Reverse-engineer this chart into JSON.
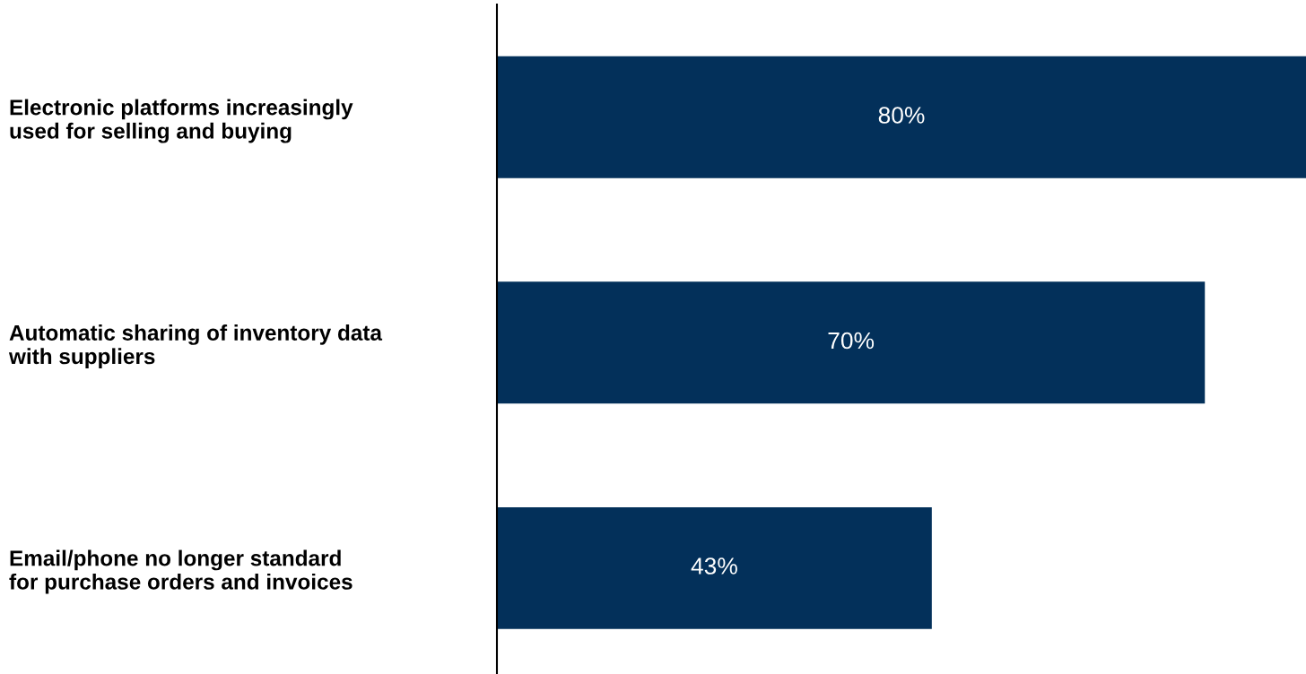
{
  "chart_data": {
    "type": "bar",
    "orientation": "horizontal",
    "relative": false,
    "categories": [
      "Electronic platforms increasingly\nused for selling and buying",
      "Automatic sharing of inventory data\nwith suppliers",
      "Email/phone no longer standard\nfor purchase orders and invoices"
    ],
    "values": [
      80,
      70,
      43
    ],
    "color": "#03305a",
    "xlim": [
      0,
      80
    ],
    "tick_labels": "y",
    "data_labels": true,
    "value_labels": [
      "80%",
      "70%",
      "43%"
    ],
    "grid": false,
    "legend": false
  }
}
